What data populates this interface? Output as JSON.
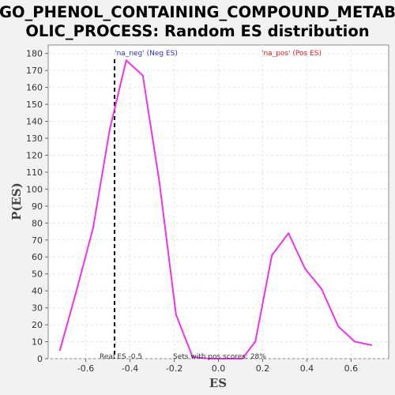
{
  "chart_data": {
    "type": "line",
    "title_line1": "GO_PHENOL_CONTAINING_COMPOUND_METAB",
    "title_line2": "OLIC_PROCESS: Random ES distribution",
    "xlabel": "ES",
    "ylabel": "P(ES)",
    "xlim": [
      -0.77,
      0.77
    ],
    "ylim": [
      0,
      185
    ],
    "x_ticks": [
      -0.6,
      -0.4,
      -0.2,
      0.0,
      0.2,
      0.4,
      0.6
    ],
    "x_tick_labels": [
      "-0.6",
      "-0.4",
      "-0.2",
      "0.0",
      "0.2",
      "0.4",
      "0.6"
    ],
    "y_ticks": [
      0,
      10,
      20,
      30,
      40,
      50,
      60,
      70,
      80,
      90,
      100,
      110,
      120,
      130,
      140,
      150,
      160,
      170,
      180
    ],
    "y_tick_labels": [
      "0",
      "10",
      "20",
      "30",
      "40",
      "50",
      "60",
      "70",
      "80",
      "90",
      "100",
      "110",
      "120",
      "130",
      "140",
      "150",
      "160",
      "170",
      "180"
    ],
    "grid": true,
    "series": [
      {
        "color": "#ee33ee",
        "x": [
          -0.717,
          -0.642,
          -0.567,
          -0.492,
          -0.417,
          -0.342,
          -0.267,
          -0.192,
          -0.117,
          -0.042,
          0.033,
          0.108,
          0.167,
          0.242,
          0.317,
          0.392,
          0.467,
          0.542,
          0.617,
          0.692
        ],
        "y": [
          5,
          40,
          77,
          135,
          176,
          167,
          104,
          26,
          1,
          0,
          0,
          0,
          10,
          61,
          74,
          53,
          41,
          19,
          10,
          8
        ]
      }
    ],
    "real_es": -0.47,
    "legend_neg": "'na_neg' (Neg ES)",
    "legend_pos": "'na_pos' (Pos ES)",
    "annotation_real_es": "Real ES -0.5",
    "annotation_pos_scores": "Sets with pos scores: 28%",
    "colors": {
      "background": "#f2f2f2",
      "plot_background": "#ffffff",
      "curve": "#ee33ee",
      "grid": "#e6e6e6",
      "legend_neg": "#3333cc",
      "legend_pos": "#dd2222"
    }
  }
}
